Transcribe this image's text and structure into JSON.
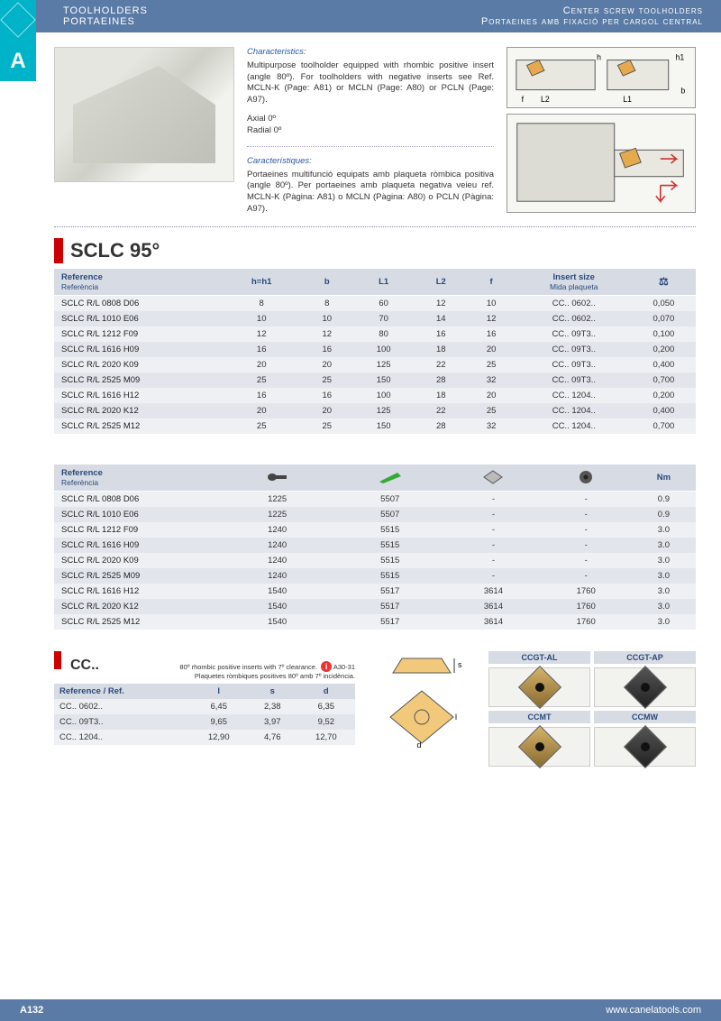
{
  "header": {
    "left_line1": "TOOLHOLDERS",
    "left_line2": "PORTAEINES",
    "right_line1": "Center screw toolholders",
    "right_line2": "Portaeines amb fixació per cargol central",
    "tab_letter": "A"
  },
  "characteristics": {
    "title_en": "Characteristics:",
    "body_en": "Multipurpose toolholder equipped with rhombic positive insert (angle 80º). For toolholders with negative inserts see Ref. MCLN-K (Page: A81) or MCLN (Page: A80) or PCLN (Page: A97).",
    "axial": "Axial 0º",
    "radial": "Radial 0º",
    "title_ca": "Característiques:",
    "body_ca": "Portaeines multifunció equipats amb plaqueta ròmbica positiva (angle 80º). Per portaeines amb plaqueta negativa veieu ref. MCLN-K (Pàgina: A81) o MCLN (Pàgina: A80) o PCLN (Pàgina: A97)."
  },
  "diagram_labels": {
    "h": "h",
    "h1": "h1",
    "b": "b",
    "f": "f",
    "L1": "L1",
    "L2": "L2"
  },
  "product": {
    "name": "SCLC 95°",
    "ref_label": "Reference",
    "ref_label2": "Referència",
    "cols": [
      "h=h1",
      "b",
      "L1",
      "L2",
      "f"
    ],
    "insert_label": "Insert size",
    "insert_label2": "Mida plaqueta",
    "kg_label": "Kg",
    "rows": [
      {
        "ref": "SCLC R/L 0808 D06",
        "h": "8",
        "b": "8",
        "L1": "60",
        "L2": "12",
        "f": "10",
        "ins": "CC.. 0602..",
        "kg": "0,050"
      },
      {
        "ref": "SCLC R/L 1010 E06",
        "h": "10",
        "b": "10",
        "L1": "70",
        "L2": "14",
        "f": "12",
        "ins": "CC.. 0602..",
        "kg": "0,070"
      },
      {
        "ref": "SCLC R/L 1212 F09",
        "h": "12",
        "b": "12",
        "L1": "80",
        "L2": "16",
        "f": "16",
        "ins": "CC.. 09T3..",
        "kg": "0,100"
      },
      {
        "ref": "SCLC R/L 1616 H09",
        "h": "16",
        "b": "16",
        "L1": "100",
        "L2": "18",
        "f": "20",
        "ins": "CC.. 09T3..",
        "kg": "0,200"
      },
      {
        "ref": "SCLC R/L 2020 K09",
        "h": "20",
        "b": "20",
        "L1": "125",
        "L2": "22",
        "f": "25",
        "ins": "CC.. 09T3..",
        "kg": "0,400"
      },
      {
        "ref": "SCLC R/L 2525 M09",
        "h": "25",
        "b": "25",
        "L1": "150",
        "L2": "28",
        "f": "32",
        "ins": "CC.. 09T3..",
        "kg": "0,700"
      },
      {
        "ref": "SCLC R/L 1616 H12",
        "h": "16",
        "b": "16",
        "L1": "100",
        "L2": "18",
        "f": "20",
        "ins": "CC.. 1204..",
        "kg": "0,200"
      },
      {
        "ref": "SCLC R/L 2020 K12",
        "h": "20",
        "b": "20",
        "L1": "125",
        "L2": "22",
        "f": "25",
        "ins": "CC.. 1204..",
        "kg": "0,400"
      },
      {
        "ref": "SCLC R/L 2525 M12",
        "h": "25",
        "b": "25",
        "L1": "150",
        "L2": "28",
        "f": "32",
        "ins": "CC.. 1204..",
        "kg": "0,700"
      }
    ]
  },
  "parts": {
    "nm_label": "Nm",
    "rows": [
      {
        "ref": "SCLC R/L 0808 D06",
        "a": "1225",
        "b": "5507",
        "c": "-",
        "d": "-",
        "nm": "0.9"
      },
      {
        "ref": "SCLC R/L 1010 E06",
        "a": "1225",
        "b": "5507",
        "c": "-",
        "d": "-",
        "nm": "0.9"
      },
      {
        "ref": "SCLC R/L 1212 F09",
        "a": "1240",
        "b": "5515",
        "c": "-",
        "d": "-",
        "nm": "3.0"
      },
      {
        "ref": "SCLC R/L 1616 H09",
        "a": "1240",
        "b": "5515",
        "c": "-",
        "d": "-",
        "nm": "3.0"
      },
      {
        "ref": "SCLC R/L 2020 K09",
        "a": "1240",
        "b": "5515",
        "c": "-",
        "d": "-",
        "nm": "3.0"
      },
      {
        "ref": "SCLC R/L 2525 M09",
        "a": "1240",
        "b": "5515",
        "c": "-",
        "d": "-",
        "nm": "3.0"
      },
      {
        "ref": "SCLC R/L 1616 H12",
        "a": "1540",
        "b": "5517",
        "c": "3614",
        "d": "1760",
        "nm": "3.0"
      },
      {
        "ref": "SCLC R/L 2020 K12",
        "a": "1540",
        "b": "5517",
        "c": "3614",
        "d": "1760",
        "nm": "3.0"
      },
      {
        "ref": "SCLC R/L 2525 M12",
        "a": "1540",
        "b": "5517",
        "c": "3614",
        "d": "1760",
        "nm": "3.0"
      }
    ]
  },
  "insert": {
    "name": "CC..",
    "desc1": "80º rhombic positive inserts with 7º clearance.",
    "desc2": "Plaquetes ròmbiques positives 80º amb 7º incidència.",
    "page_ref": "A30-31",
    "ref_label": "Reference / Ref.",
    "cols": [
      "l",
      "s",
      "d"
    ],
    "rows": [
      {
        "ref": "CC.. 0602..",
        "l": "6,45",
        "s": "2,38",
        "d": "6,35"
      },
      {
        "ref": "CC.. 09T3..",
        "l": "9,65",
        "s": "3,97",
        "d": "9,52"
      },
      {
        "ref": "CC.. 1204..",
        "l": "12,90",
        "s": "4,76",
        "d": "12,70"
      }
    ],
    "types": [
      "CCGT-AL",
      "CCGT-AP",
      "CCMT",
      "CCMW"
    ],
    "dim_s": "s",
    "dim_l": "l",
    "dim_d": "d"
  },
  "footer": {
    "page": "A132",
    "url": "www.canelatools.com"
  },
  "colors": {
    "header_bg": "#5a7ba6",
    "tab_bg": "#00b3c8",
    "accent_red": "#c00",
    "th_bg": "#d6dbe4",
    "row_odd": "#eef0f4",
    "row_even": "#e2e6ec",
    "link_blue": "#2a5a9e"
  }
}
